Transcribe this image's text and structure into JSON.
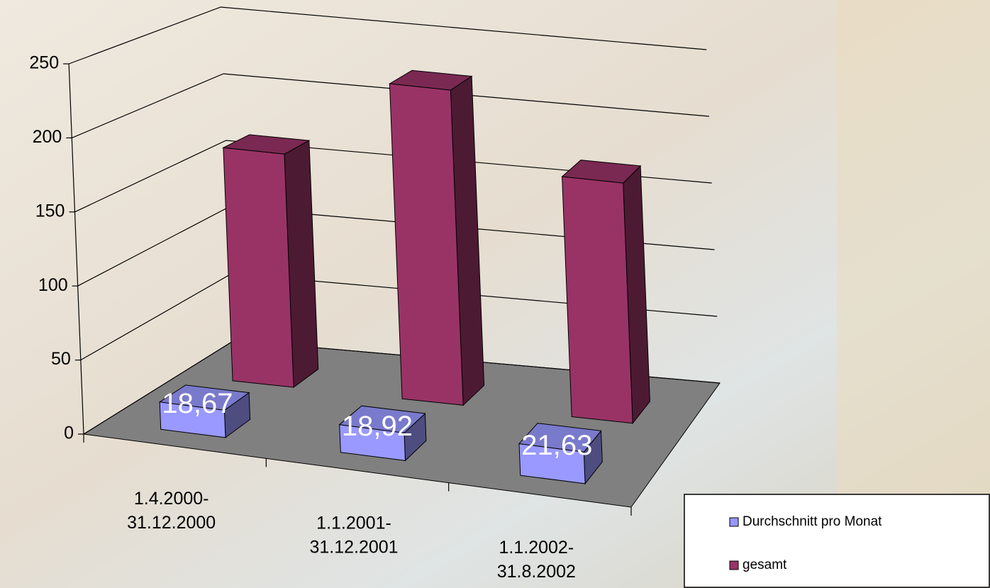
{
  "chart_data": {
    "type": "bar3d",
    "categories": [
      "1.4.2000-\n31.12.2000",
      "1.1.2001-\n31.12.2001",
      "1.1.2002-\n31.8.2002"
    ],
    "series": [
      {
        "name": "Durchschnitt pro Monat",
        "color": "#9999ff",
        "values": [
          18.67,
          18.92,
          21.63
        ],
        "value_labels": [
          "18,67",
          "18,92",
          "21,63"
        ]
      },
      {
        "name": "gesamt",
        "color": "#993366",
        "values": [
          168,
          227,
          173
        ]
      }
    ],
    "ylim": [
      0,
      250
    ],
    "yticks": [
      0,
      50,
      100,
      150,
      200,
      250
    ],
    "grid": true,
    "legend": "bottom-right"
  }
}
